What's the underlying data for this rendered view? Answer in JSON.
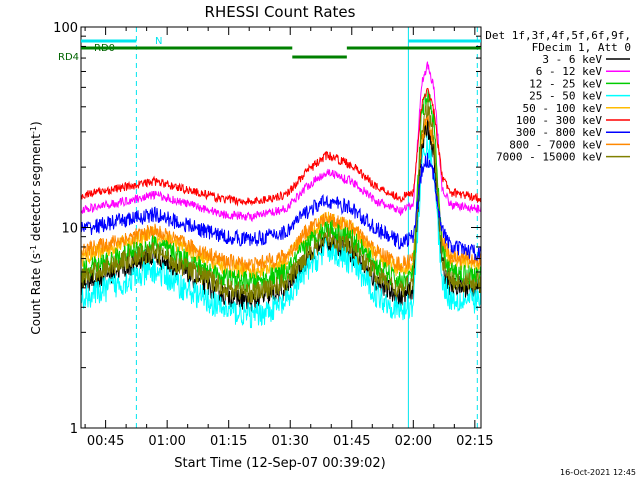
{
  "chart_data": {
    "type": "line",
    "title": "RHESSI Count Rates",
    "xlabel": "Start Time (12-Sep-07 00:39:02)",
    "ylabel_main": "Count Rate (s",
    "ylabel_exp1": "-1",
    "ylabel_mid": " detector segment",
    "ylabel_exp2": "-1",
    "ylabel_end": ")",
    "yscale": "log",
    "ylim": [
      1,
      100
    ],
    "xlim_minutes_from_0039": [
      0,
      97.5
    ],
    "x_tick_labels": [
      "00:45",
      "01:00",
      "01:15",
      "01:30",
      "01:45",
      "02:00",
      "02:15"
    ],
    "x_tick_minutes": [
      6,
      21,
      36,
      51,
      66,
      81,
      96
    ],
    "y_tick_labels": [
      "1",
      "10",
      "100"
    ],
    "y_tick_values": [
      1,
      10,
      100
    ],
    "grid": false,
    "legend_placement": "right",
    "legend_header": [
      "Det 1f,3f,4f,5f,6f,9f,",
      "FDecim 1, Att 0"
    ],
    "legend_note": "",
    "timestamp": "16-Oct-2021 12:45",
    "flag_labels": {
      "n": "N",
      "rd0": "RD0",
      "rd4": "RD4"
    },
    "series": [
      {
        "name": "3 - 6 keV",
        "color": "#000000",
        "knots": [
          [
            0,
            5.2
          ],
          [
            10,
            6.3
          ],
          [
            18,
            7.2
          ],
          [
            25,
            6.0
          ],
          [
            35,
            4.6
          ],
          [
            42,
            4.3
          ],
          [
            50,
            4.9
          ],
          [
            55,
            7.0
          ],
          [
            60,
            8.6
          ],
          [
            66,
            7.5
          ],
          [
            72,
            5.4
          ],
          [
            78,
            4.4
          ],
          [
            81,
            4.9
          ],
          [
            83,
            24
          ],
          [
            84.5,
            33
          ],
          [
            86,
            22
          ],
          [
            88,
            6.5
          ],
          [
            90,
            5.1
          ],
          [
            97.5,
            5.0
          ]
        ]
      },
      {
        "name": "6 - 12 keV",
        "color": "#ff00ff",
        "knots": [
          [
            0,
            12.2
          ],
          [
            10,
            13.4
          ],
          [
            18,
            14.6
          ],
          [
            25,
            13.3
          ],
          [
            35,
            11.6
          ],
          [
            42,
            11.3
          ],
          [
            50,
            12.4
          ],
          [
            55,
            16.0
          ],
          [
            60,
            19.0
          ],
          [
            66,
            17.0
          ],
          [
            72,
            13.5
          ],
          [
            78,
            12.0
          ],
          [
            81,
            13.0
          ],
          [
            83,
            52
          ],
          [
            84.5,
            65
          ],
          [
            86,
            50
          ],
          [
            88,
            16.0
          ],
          [
            90,
            13.0
          ],
          [
            97.5,
            12.3
          ]
        ]
      },
      {
        "name": "12 - 25 keV",
        "color": "#00cc00",
        "knots": [
          [
            0,
            6.0
          ],
          [
            10,
            7.2
          ],
          [
            18,
            8.3
          ],
          [
            25,
            7.0
          ],
          [
            35,
            5.6
          ],
          [
            42,
            5.3
          ],
          [
            50,
            5.9
          ],
          [
            55,
            8.2
          ],
          [
            60,
            10.0
          ],
          [
            66,
            8.8
          ],
          [
            72,
            6.4
          ],
          [
            78,
            5.3
          ],
          [
            81,
            5.9
          ],
          [
            83,
            36
          ],
          [
            84.5,
            47
          ],
          [
            86,
            34
          ],
          [
            88,
            7.6
          ],
          [
            90,
            6.0
          ],
          [
            97.5,
            5.7
          ]
        ]
      },
      {
        "name": "25 - 50 keV",
        "color": "#00ffff",
        "knots": [
          [
            0,
            4.4
          ],
          [
            10,
            5.3
          ],
          [
            18,
            6.1
          ],
          [
            25,
            5.0
          ],
          [
            35,
            3.9
          ],
          [
            42,
            3.6
          ],
          [
            50,
            4.2
          ],
          [
            55,
            6.2
          ],
          [
            60,
            7.8
          ],
          [
            66,
            6.7
          ],
          [
            72,
            4.6
          ],
          [
            78,
            3.8
          ],
          [
            81,
            4.2
          ],
          [
            83,
            20
          ],
          [
            84.5,
            26
          ],
          [
            86,
            19
          ],
          [
            88,
            5.5
          ],
          [
            90,
            4.4
          ],
          [
            97.5,
            4.3
          ]
        ]
      },
      {
        "name": "50 - 100 keV",
        "color": "#ffbb00",
        "knots": [
          [
            0,
            7.0
          ],
          [
            10,
            8.3
          ],
          [
            18,
            9.3
          ],
          [
            25,
            8.0
          ],
          [
            35,
            6.4
          ],
          [
            42,
            6.0
          ],
          [
            50,
            6.8
          ],
          [
            55,
            9.3
          ],
          [
            60,
            11.0
          ],
          [
            66,
            9.8
          ],
          [
            72,
            7.2
          ],
          [
            78,
            6.1
          ],
          [
            81,
            6.7
          ],
          [
            83,
            26
          ],
          [
            84.5,
            34
          ],
          [
            86,
            25
          ],
          [
            88,
            8.5
          ],
          [
            90,
            6.9
          ],
          [
            97.5,
            6.5
          ]
        ]
      },
      {
        "name": "100 - 300 keV",
        "color": "#ff0000",
        "knots": [
          [
            0,
            14.5
          ],
          [
            10,
            15.8
          ],
          [
            18,
            17.0
          ],
          [
            25,
            15.6
          ],
          [
            35,
            13.8
          ],
          [
            42,
            13.4
          ],
          [
            50,
            14.6
          ],
          [
            55,
            19.0
          ],
          [
            60,
            23.0
          ],
          [
            66,
            20.5
          ],
          [
            72,
            16.0
          ],
          [
            78,
            14.0
          ],
          [
            81,
            15.0
          ],
          [
            83,
            40
          ],
          [
            84.5,
            50
          ],
          [
            86,
            38
          ],
          [
            88,
            18.0
          ],
          [
            90,
            15.0
          ],
          [
            97.5,
            14.0
          ]
        ]
      },
      {
        "name": "300 - 800 keV",
        "color": "#0000ff",
        "knots": [
          [
            0,
            9.8
          ],
          [
            10,
            10.8
          ],
          [
            18,
            11.6
          ],
          [
            25,
            10.4
          ],
          [
            35,
            9.0
          ],
          [
            42,
            8.7
          ],
          [
            50,
            9.5
          ],
          [
            55,
            12.0
          ],
          [
            60,
            13.6
          ],
          [
            66,
            12.4
          ],
          [
            72,
            9.8
          ],
          [
            78,
            8.4
          ],
          [
            81,
            9.0
          ],
          [
            83,
            19
          ],
          [
            84.5,
            22
          ],
          [
            86,
            18
          ],
          [
            88,
            9.8
          ],
          [
            90,
            8.0
          ],
          [
            97.5,
            7.4
          ]
        ]
      },
      {
        "name": "800 - 7000 keV",
        "color": "#ff8800",
        "knots": [
          [
            0,
            7.6
          ],
          [
            10,
            8.7
          ],
          [
            18,
            9.6
          ],
          [
            25,
            8.3
          ],
          [
            35,
            6.8
          ],
          [
            42,
            6.5
          ],
          [
            50,
            7.2
          ],
          [
            55,
            9.6
          ],
          [
            60,
            11.2
          ],
          [
            66,
            10.0
          ],
          [
            72,
            7.6
          ],
          [
            78,
            6.5
          ],
          [
            81,
            7.0
          ],
          [
            83,
            28
          ],
          [
            84.5,
            36
          ],
          [
            86,
            26
          ],
          [
            88,
            8.8
          ],
          [
            90,
            7.2
          ],
          [
            97.5,
            6.8
          ]
        ]
      },
      {
        "name": "7000 - 15000 keV",
        "color": "#808000",
        "knots": [
          [
            0,
            5.6
          ],
          [
            10,
            6.8
          ],
          [
            18,
            7.6
          ],
          [
            25,
            6.4
          ],
          [
            35,
            5.0
          ],
          [
            42,
            4.7
          ],
          [
            50,
            5.3
          ],
          [
            55,
            7.4
          ],
          [
            60,
            9.0
          ],
          [
            66,
            8.0
          ],
          [
            72,
            5.8
          ],
          [
            78,
            4.8
          ],
          [
            81,
            5.3
          ],
          [
            83,
            30
          ],
          [
            84.5,
            40
          ],
          [
            86,
            28
          ],
          [
            88,
            7.0
          ],
          [
            90,
            5.4
          ],
          [
            97.5,
            5.3
          ]
        ]
      }
    ]
  }
}
